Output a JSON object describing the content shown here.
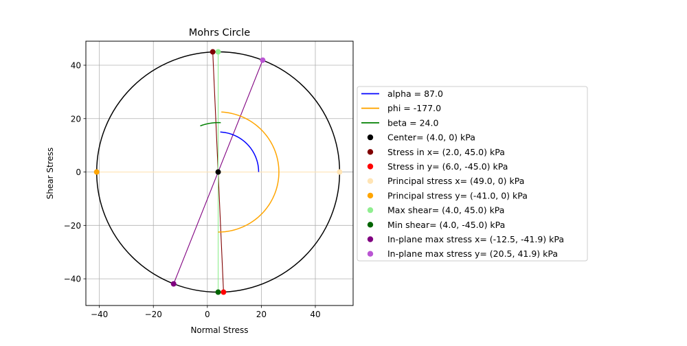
{
  "chart_data": {
    "type": "scatter",
    "title": "Mohrs Circle",
    "xlabel": "Normal Stress",
    "ylabel": "Shear Stress",
    "xlim": [
      -45,
      54
    ],
    "ylim": [
      49,
      -50
    ],
    "y_inverted": true,
    "grid": true,
    "legend_position": "right, outside plot",
    "x_ticks": [
      -40,
      -20,
      0,
      20,
      40
    ],
    "y_ticks": [
      -40,
      -20,
      0,
      20,
      40
    ],
    "x_tick_labels": [
      "−40",
      "−20",
      "0",
      "20",
      "40"
    ],
    "y_tick_labels": [
      "−40",
      "−20",
      "0",
      "20",
      "40"
    ],
    "center": [
      4.0,
      0
    ],
    "radius": 45.0,
    "arcs": [
      {
        "label": "alpha = 87.0",
        "color": "#0000ff",
        "radius": 15,
        "start_deg": 0,
        "end_deg": 87
      },
      {
        "label": "phi = -177.0",
        "color": "#ffa500",
        "radius": 22.5,
        "start_deg": 87,
        "end_deg": -90
      },
      {
        "label": "beta = 24.0",
        "color": "#008000",
        "radius": 18.5,
        "start_deg": 87,
        "end_deg": 111
      }
    ],
    "lines": [
      {
        "from": [
          2.0,
          45.0
        ],
        "to": [
          6.0,
          -45.0
        ],
        "color": "#800000"
      },
      {
        "from": [
          49.0,
          0
        ],
        "to": [
          -41.0,
          0
        ],
        "color": "#ffe4b5"
      },
      {
        "from": [
          4.0,
          45.0
        ],
        "to": [
          4.0,
          -45.0
        ],
        "color": "#90ee90"
      },
      {
        "from": [
          -12.5,
          -41.9
        ],
        "to": [
          20.5,
          41.9
        ],
        "color": "#800080"
      }
    ],
    "points": [
      {
        "label": "Center= (4.0, 0) kPa",
        "x": 4.0,
        "y": 0,
        "color": "#000000"
      },
      {
        "label": "Stress in x= (2.0, 45.0) kPa",
        "x": 2.0,
        "y": 45.0,
        "color": "#800000"
      },
      {
        "label": "Stress in y= (6.0, -45.0) kPa",
        "x": 6.0,
        "y": -45.0,
        "color": "#ff0000"
      },
      {
        "label": "Principal stress x= (49.0, 0) kPa",
        "x": 49.0,
        "y": 0,
        "color": "#ffe4b5"
      },
      {
        "label": "Principal stress y= (-41.0, 0) kPa",
        "x": -41.0,
        "y": 0,
        "color": "#ffa500"
      },
      {
        "label": "Max shear= (4.0, 45.0) kPa",
        "x": 4.0,
        "y": 45.0,
        "color": "#90ee90"
      },
      {
        "label": "Min shear= (4.0, -45.0) kPa",
        "x": 4.0,
        "y": -45.0,
        "color": "#006400"
      },
      {
        "label": "In-plane max stress x= (-12.5, -41.9) kPa",
        "x": -12.5,
        "y": -41.9,
        "color": "#800080"
      },
      {
        "label": "In-plane max stress y= (20.5, 41.9) kPa",
        "x": 20.5,
        "y": 41.9,
        "color": "#ba55d3"
      }
    ]
  }
}
